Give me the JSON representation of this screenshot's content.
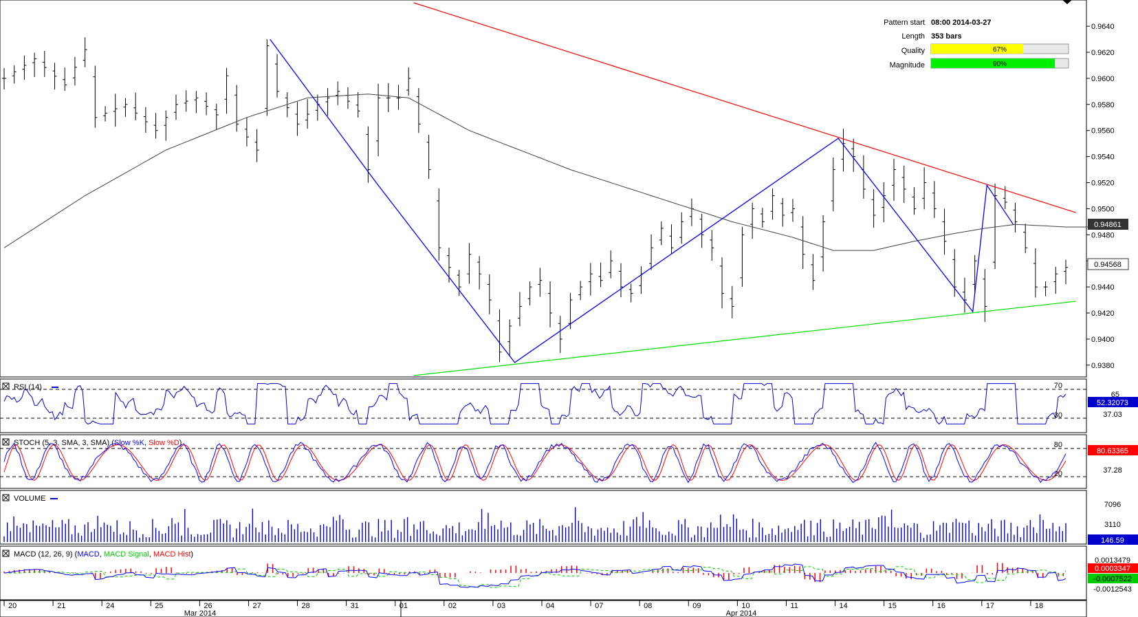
{
  "info": {
    "pattern_start_label": "Pattern start",
    "pattern_start_value": "08:00 2014-03-27",
    "length_label": "Length",
    "length_value": "353 bars",
    "quality_label": "Quality",
    "quality_value": "67%",
    "quality_fraction": 0.67,
    "magnitude_label": "Magnitude",
    "magnitude_value": "90%",
    "magnitude_fraction": 0.9
  },
  "colors": {
    "price_bar": "#000000",
    "sma": "#404040",
    "resistance": "#ff0000",
    "support": "#00dd00",
    "zigzag": "#0000ff",
    "quality_fill": "#ffff00",
    "magnitude_fill": "#00ee00",
    "rsi": "#0000cc",
    "stoch_k": "#0000ff",
    "stoch_d": "#ff0000",
    "volume": "#0000cc",
    "macd": "#0000ff",
    "macd_signal": "#00cc00",
    "macd_hist": "#ff0000"
  },
  "panels": {
    "rsi": {
      "label": "RSI (14)",
      "levels": [
        "70",
        "65",
        "30"
      ],
      "value": "52.32073",
      "secondary_value": "37.03"
    },
    "stoch": {
      "label_prefix": "STOCH (5, 3, SMA, 3, SMA)",
      "label_k": "Slow %K",
      "label_d": "Slow %D",
      "levels": [
        "80",
        "20"
      ],
      "value": "80.63365",
      "secondary_value": "37.28"
    },
    "volume": {
      "label": "VOLUME",
      "ticks": [
        "7096",
        "3110"
      ],
      "value": "146.59"
    },
    "macd": {
      "label_prefix": "MACD (12, 26, 9)",
      "label_macd": "MACD",
      "label_signal": "MACD Signal",
      "label_hist": "MACD Hist",
      "ticks": [
        "0.0013479",
        "-0.0012543"
      ],
      "value": "0.0003347",
      "signal_value": "-0.0007522"
    }
  },
  "price_markers": {
    "sma_value": "0.94861",
    "last_value": "0.94568"
  },
  "chart_data": {
    "type": "line",
    "title": "",
    "instrument_bars": "OHLC",
    "y_ticks": [
      "0.9640",
      "0.9620",
      "0.9600",
      "0.9580",
      "0.9560",
      "0.9540",
      "0.9520",
      "0.9500",
      "0.9480",
      "0.9460",
      "0.9440",
      "0.9420",
      "0.9400",
      "0.9380"
    ],
    "ylim": [
      0.9372,
      0.9658
    ],
    "x_labels": [
      "20",
      "21",
      "24",
      "25",
      "26",
      "27",
      "28",
      "31",
      "01",
      "02",
      "03",
      "04",
      "07",
      "08",
      "09",
      "10",
      "11",
      "14",
      "15",
      "16",
      "17",
      "18"
    ],
    "month_labels": [
      "Mar 2014",
      "Apr 2014"
    ],
    "price_anchors": [
      [
        0,
        0.96
      ],
      [
        3,
        0.9615
      ],
      [
        6,
        0.9595
      ],
      [
        8,
        0.9622
      ],
      [
        9,
        0.957
      ],
      [
        12,
        0.958
      ],
      [
        15,
        0.956
      ],
      [
        17,
        0.958
      ],
      [
        19,
        0.9585
      ],
      [
        21,
        0.9572
      ],
      [
        22,
        0.9602
      ],
      [
        23,
        0.9565
      ],
      [
        25,
        0.9545
      ],
      [
        26,
        0.9625
      ],
      [
        27,
        0.959
      ],
      [
        29,
        0.9565
      ],
      [
        31,
        0.958
      ],
      [
        33,
        0.959
      ],
      [
        35,
        0.9575
      ],
      [
        36,
        0.953
      ],
      [
        37,
        0.9585
      ],
      [
        39,
        0.9585
      ],
      [
        40,
        0.96
      ],
      [
        42,
        0.953
      ],
      [
        43,
        0.947
      ],
      [
        45,
        0.944
      ],
      [
        46,
        0.9465
      ],
      [
        47,
        0.945
      ],
      [
        48,
        0.943
      ],
      [
        49,
        0.939
      ],
      [
        50,
        0.941
      ],
      [
        52,
        0.944
      ],
      [
        53,
        0.9445
      ],
      [
        54,
        0.942
      ],
      [
        55,
        0.94
      ],
      [
        56,
        0.943
      ],
      [
        58,
        0.945
      ],
      [
        59,
        0.9445
      ],
      [
        60,
        0.946
      ],
      [
        61,
        0.944
      ],
      [
        62,
        0.9435
      ],
      [
        63,
        0.945
      ],
      [
        64,
        0.947
      ],
      [
        65,
        0.9485
      ],
      [
        66,
        0.947
      ],
      [
        67,
        0.949
      ],
      [
        68,
        0.95
      ],
      [
        69,
        0.948
      ],
      [
        70,
        0.947
      ],
      [
        71,
        0.9435
      ],
      [
        72,
        0.9425
      ],
      [
        73,
        0.948
      ],
      [
        74,
        0.95
      ],
      [
        75,
        0.949
      ],
      [
        76,
        0.951
      ],
      [
        77,
        0.9495
      ],
      [
        78,
        0.95
      ],
      [
        79,
        0.9465
      ],
      [
        80,
        0.9445
      ],
      [
        81,
        0.949
      ],
      [
        82,
        0.953
      ],
      [
        83,
        0.955
      ],
      [
        84,
        0.954
      ],
      [
        85,
        0.9515
      ],
      [
        86,
        0.9495
      ],
      [
        87,
        0.951
      ],
      [
        88,
        0.953
      ],
      [
        89,
        0.9515
      ],
      [
        90,
        0.95
      ],
      [
        91,
        0.952
      ],
      [
        92,
        0.95
      ],
      [
        93,
        0.9475
      ],
      [
        94,
        0.944
      ],
      [
        95,
        0.943
      ],
      [
        96,
        0.946
      ],
      [
        97,
        0.9425
      ],
      [
        98,
        0.951
      ],
      [
        99,
        0.9505
      ],
      [
        100,
        0.949
      ],
      [
        101,
        0.947
      ],
      [
        102,
        0.944
      ],
      [
        103,
        0.944
      ],
      [
        104,
        0.945
      ],
      [
        105,
        0.9455
      ]
    ],
    "sma_anchors": [
      [
        0,
        0.947
      ],
      [
        8,
        0.951
      ],
      [
        16,
        0.9545
      ],
      [
        24,
        0.957
      ],
      [
        30,
        0.9585
      ],
      [
        36,
        0.9588
      ],
      [
        40,
        0.9585
      ],
      [
        46,
        0.956
      ],
      [
        56,
        0.953
      ],
      [
        64,
        0.951
      ],
      [
        72,
        0.949
      ],
      [
        78,
        0.9478
      ],
      [
        82,
        0.9468
      ],
      [
        86,
        0.9468
      ],
      [
        90,
        0.9475
      ],
      [
        94,
        0.9481
      ],
      [
        97,
        0.9485
      ],
      [
        100,
        0.9488
      ],
      [
        105,
        0.9486
      ]
    ],
    "resistance_line": [
      [
        40.5,
        0.9658
      ],
      [
        106,
        0.9497
      ]
    ],
    "support_line": [
      [
        40.5,
        0.9372
      ],
      [
        106,
        0.9429
      ]
    ],
    "zigzag": [
      [
        26.3,
        0.963
      ],
      [
        36.8,
        0.952
      ],
      [
        50.5,
        0.9382
      ],
      [
        82.5,
        0.9554
      ],
      [
        95.8,
        0.9421
      ],
      [
        97.2,
        0.9518
      ],
      [
        99.8,
        0.9488
      ]
    ],
    "n_bars": 106
  }
}
